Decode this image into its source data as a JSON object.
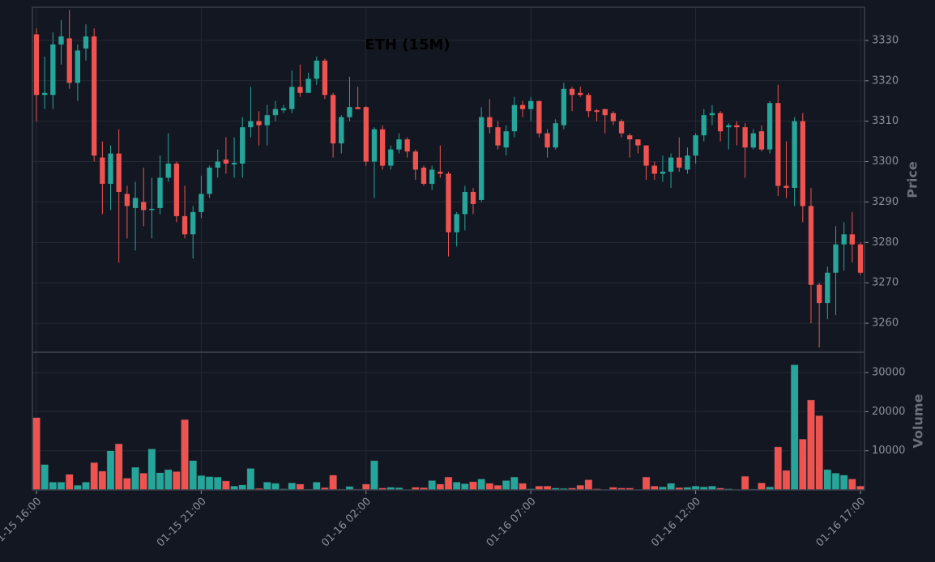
{
  "chart_data": {
    "type": "candlestick",
    "title": "ETH (15M)",
    "categories": [
      "01-15 16:00",
      null,
      null,
      null,
      null,
      null,
      null,
      null,
      null,
      null,
      null,
      null,
      null,
      null,
      null,
      null,
      null,
      null,
      null,
      null,
      "01-15 21:00",
      null,
      null,
      null,
      null,
      null,
      null,
      null,
      null,
      null,
      null,
      null,
      null,
      null,
      null,
      null,
      null,
      null,
      null,
      null,
      "01-16 02:00",
      null,
      null,
      null,
      null,
      null,
      null,
      null,
      null,
      null,
      null,
      null,
      null,
      null,
      null,
      null,
      null,
      null,
      null,
      null,
      "01-16 07:00",
      null,
      null,
      null,
      null,
      null,
      null,
      null,
      null,
      null,
      null,
      null,
      null,
      null,
      null,
      null,
      null,
      null,
      null,
      null,
      "01-16 12:00",
      null,
      null,
      null,
      null,
      null,
      null,
      null,
      null,
      null,
      null,
      null,
      null,
      null,
      null,
      null,
      null,
      null,
      null,
      null,
      "01-16 17:00"
    ],
    "open": [
      3331.5,
      3316.5,
      3316.5,
      3329,
      3330.5,
      3319.5,
      3328,
      3331,
      3301,
      3294.5,
      3302,
      3292,
      3288.5,
      3290,
      3288,
      3288.5,
      3296,
      3299.5,
      3286.5,
      3282,
      3287.5,
      3292,
      3298.5,
      3300.5,
      3299.3,
      3299.5,
      3308.5,
      3310,
      3309,
      3311.5,
      3312.7,
      3313,
      3318.5,
      3317,
      3320.5,
      3325,
      3316.5,
      3304.5,
      3311,
      3313.5,
      3313.5,
      3300,
      3308,
      3299,
      3303,
      3305.5,
      3302.5,
      3298.5,
      3294.5,
      3297.5,
      3297,
      3282.5,
      3287,
      3292.5,
      3290.5,
      3311,
      3308.5,
      3303.5,
      3307.5,
      3314,
      3313,
      3315,
      3307,
      3303.5,
      3309,
      3318,
      3317,
      3316.5,
      3312.7,
      3313,
      3312,
      3310,
      3306.5,
      3305.5,
      3304,
      3299,
      3297,
      3297.5,
      3301,
      3298,
      3301.5,
      3306.5,
      3311.5,
      3312,
      3308.5,
      3309,
      3308.5,
      3303.5,
      3307.5,
      3303,
      3314.5,
      3294,
      3293.5,
      3310,
      3289,
      3269.5,
      3265,
      3272.5,
      3279.5,
      3282,
      3279.5
    ],
    "high": [
      3333,
      3326,
      3332,
      3335,
      3337.5,
      3329,
      3334,
      3333,
      3305,
      3304,
      3308,
      3294,
      3295,
      3298.5,
      3296,
      3301.5,
      3307,
      3300,
      3294,
      3289,
      3296.5,
      3299,
      3303,
      3306,
      3306,
      3311,
      3318.5,
      3312.5,
      3314,
      3315,
      3314,
      3322.5,
      3324,
      3322,
      3326,
      3325.5,
      3317,
      3311.5,
      3321,
      3318.5,
      3313.7,
      3308.5,
      3309,
      3304,
      3307,
      3306,
      3303,
      3299,
      3299,
      3304,
      3297.5,
      3287.5,
      3294,
      3293.5,
      3313.5,
      3315.5,
      3310,
      3309,
      3316,
      3315,
      3316,
      3315,
      3308,
      3310.5,
      3319.5,
      3318.5,
      3318.5,
      3317,
      3313,
      3313,
      3312.5,
      3310.5,
      3307,
      3305.5,
      3304,
      3300,
      3301.5,
      3302,
      3306,
      3303.5,
      3307,
      3313,
      3314,
      3312.5,
      3309.5,
      3310,
      3309.5,
      3308,
      3309,
      3315,
      3319,
      3305,
      3311,
      3312,
      3293.5,
      3270,
      3274,
      3284,
      3285,
      3287.5,
      3280
    ],
    "low": [
      3310,
      3313,
      3313,
      3324,
      3318,
      3315,
      3325,
      3300,
      3287,
      3288,
      3275,
      3281,
      3278,
      3284,
      3281,
      3287,
      3295,
      3285,
      3281,
      3276,
      3286,
      3291,
      3296,
      3297,
      3296,
      3296,
      3306,
      3304,
      3304,
      3310,
      3312,
      3312,
      3316,
      3317,
      3319,
      3315.5,
      3301,
      3302,
      3310,
      3313,
      3299,
      3291,
      3298,
      3298,
      3302,
      3301,
      3295.5,
      3294,
      3293,
      3296,
      3276.5,
      3279,
      3283,
      3287,
      3290,
      3307,
      3303,
      3301.5,
      3306,
      3311,
      3310,
      3306,
      3301,
      3303,
      3308,
      3312.5,
      3316,
      3311,
      3310,
      3307,
      3309,
      3306,
      3301,
      3302,
      3295.5,
      3295.5,
      3295,
      3293.5,
      3297.5,
      3297,
      3299.5,
      3305,
      3309,
      3305,
      3303,
      3304,
      3296,
      3303,
      3302.5,
      3302,
      3291.5,
      3291,
      3289,
      3285,
      3260,
      3254,
      3261,
      3262,
      3273,
      3275,
      3272
    ],
    "close": [
      3316.5,
      3317,
      3329,
      3331,
      3319.5,
      3327.5,
      3331,
      3301.5,
      3294.5,
      3302,
      3292.5,
      3289,
      3291,
      3288,
      3288.3,
      3296,
      3299.5,
      3286.5,
      3282,
      3287.5,
      3292,
      3298.5,
      3300,
      3299.5,
      3299.7,
      3308.5,
      3310,
      3309,
      3311.5,
      3313,
      3313.2,
      3318.5,
      3317,
      3320.5,
      3325,
      3316.5,
      3304.5,
      3311,
      3313.5,
      3313,
      3300,
      3308,
      3299,
      3303,
      3305.5,
      3302.5,
      3298,
      3294.5,
      3298,
      3297,
      3282.5,
      3287,
      3292.5,
      3289.5,
      3311,
      3308.5,
      3304,
      3307.5,
      3314,
      3313,
      3315,
      3307,
      3303.5,
      3309.5,
      3318,
      3316.5,
      3316.5,
      3312.5,
      3312.3,
      3311.5,
      3310,
      3307,
      3305.5,
      3304,
      3299,
      3297,
      3297.5,
      3301,
      3298.5,
      3301.5,
      3306.5,
      3311.5,
      3312,
      3307.5,
      3309,
      3308.5,
      3303.5,
      3307,
      3303,
      3314.5,
      3294,
      3293.5,
      3310,
      3289,
      3269.5,
      3265,
      3272.5,
      3279.5,
      3282,
      3279.5,
      3272.5
    ],
    "ylabel": "Price",
    "ylim": [
      3252.8,
      3338.2
    ],
    "yticks": [
      3260,
      3270,
      3280,
      3290,
      3300,
      3310,
      3320,
      3330
    ],
    "up_color": "#26a69a",
    "down_color": "#ef5350",
    "grid": true,
    "volume": {
      "type": "bar",
      "ylabel": "Volume",
      "ylim": [
        0,
        35200
      ],
      "yticks": [
        10000,
        20000,
        30000
      ],
      "values": [
        18500,
        6500,
        2000,
        2000,
        4000,
        1200,
        2000,
        7000,
        4800,
        10000,
        11800,
        3000,
        5800,
        4300,
        10500,
        4400,
        5200,
        4700,
        18000,
        7500,
        3700,
        3400,
        3300,
        2300,
        1000,
        1300,
        5500,
        400,
        2000,
        1700,
        300,
        1800,
        1500,
        200,
        2000,
        600,
        3800,
        200,
        900,
        200,
        1500,
        7500,
        500,
        700,
        600,
        100,
        700,
        600,
        2400,
        1500,
        3300,
        2000,
        1600,
        2100,
        2800,
        1700,
        1200,
        2400,
        3300,
        1700,
        300,
        1000,
        1000,
        500,
        400,
        500,
        1200,
        2600,
        300,
        100,
        700,
        500,
        500,
        100,
        3300,
        1000,
        800,
        1700,
        600,
        700,
        1000,
        800,
        1000,
        500,
        300,
        100,
        3500,
        200,
        1800,
        800,
        11000,
        5000,
        32000,
        13000,
        23000,
        19000,
        5200,
        4300,
        3800,
        2800,
        1000
      ]
    }
  }
}
